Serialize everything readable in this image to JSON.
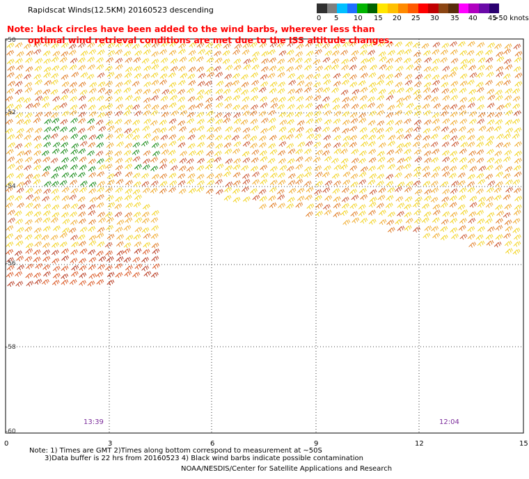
{
  "title": "Rapidscat Winds(12.5KM) 20160523 descending",
  "notes": [
    "Note: black circles have been added to the wind barbs, wherever less than",
    "optimal wind retrieval conditions are met due to the ISS altitude changes."
  ],
  "colorbar": {
    "unit": "knots",
    "labels": [
      "0",
      "5",
      "10",
      "15",
      "20",
      "25",
      "30",
      "35",
      "40",
      "45",
      ">50 knots"
    ],
    "colors": [
      "#303030",
      "#7f7f7f",
      "#00bfff",
      "#1f6fff",
      "#00b400",
      "#006400",
      "#ffe600",
      "#ffc000",
      "#ff8a00",
      "#ff5a00",
      "#ff0000",
      "#c00000",
      "#8b4513",
      "#5a2d0c",
      "#ff00ff",
      "#b000c0",
      "#6a0aa8",
      "#2a0070"
    ]
  },
  "axes": {
    "x_ticks": [
      "0",
      "3",
      "6",
      "9",
      "12",
      "15"
    ],
    "y_ticks": [
      "-50",
      "-52",
      "-54",
      "-56",
      "-58",
      "-60"
    ]
  },
  "swath_times": [
    "13:39",
    "12:04"
  ],
  "footnotes": [
    "Note: 1) Times are GMT 2)Times along bottom correspond to measurement at ~50S",
    "3)Data buffer is 22 hrs from 20160523 4) Black wind barbs indicate possible contamination"
  ],
  "credit": "NOAA/NESDIS/Center for Satellite Applications and Research"
}
